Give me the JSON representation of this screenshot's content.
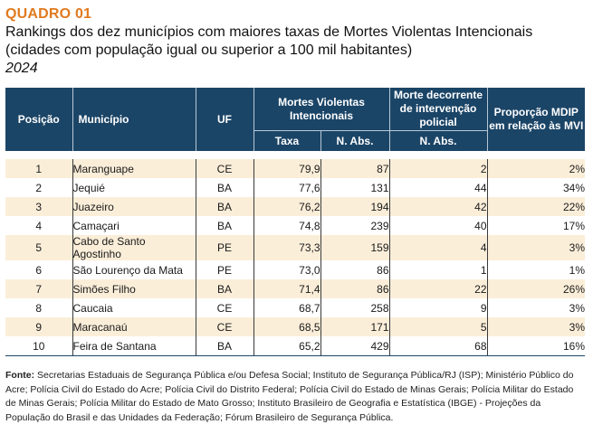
{
  "header": {
    "label": "QUADRO 01",
    "title": "Rankings dos dez municípios com maiores taxas de Mortes Violentas Intencionais (cidades com população igual ou superior a 100 mil habitantes)",
    "year": "2024"
  },
  "table": {
    "columns": {
      "posicao": "Posição",
      "municipio": "Município",
      "uf": "UF",
      "mvi_group": "Mortes Violentas Intencionais",
      "taxa": "Taxa",
      "n_abs": "N. Abs.",
      "mdip_group": "Morte decorrente de intervenção policial",
      "mdip_n_abs": "N. Abs.",
      "proporcao": "Proporção MDIP em relação às MVI"
    },
    "rows": [
      {
        "posicao": "1",
        "municipio": "Maranguape",
        "uf": "CE",
        "taxa": "79,9",
        "n_abs": "87",
        "mdip": "2",
        "proporcao": "2%"
      },
      {
        "posicao": "2",
        "municipio": "Jequié",
        "uf": "BA",
        "taxa": "77,6",
        "n_abs": "131",
        "mdip": "44",
        "proporcao": "34%"
      },
      {
        "posicao": "3",
        "municipio": "Juazeiro",
        "uf": "BA",
        "taxa": "76,2",
        "n_abs": "194",
        "mdip": "42",
        "proporcao": "22%"
      },
      {
        "posicao": "4",
        "municipio": "Camaçari",
        "uf": "BA",
        "taxa": "74,8",
        "n_abs": "239",
        "mdip": "40",
        "proporcao": "17%"
      },
      {
        "posicao": "5",
        "municipio": "Cabo de Santo Agostinho",
        "uf": "PE",
        "taxa": "73,3",
        "n_abs": "159",
        "mdip": "4",
        "proporcao": "3%"
      },
      {
        "posicao": "6",
        "municipio": "São Lourenço da Mata",
        "uf": "PE",
        "taxa": "73,0",
        "n_abs": "86",
        "mdip": "1",
        "proporcao": "1%"
      },
      {
        "posicao": "7",
        "municipio": "Simões Filho",
        "uf": "BA",
        "taxa": "71,4",
        "n_abs": "86",
        "mdip": "22",
        "proporcao": "26%"
      },
      {
        "posicao": "8",
        "municipio": "Caucaia",
        "uf": "CE",
        "taxa": "68,7",
        "n_abs": "258",
        "mdip": "9",
        "proporcao": "3%"
      },
      {
        "posicao": "9",
        "municipio": "Maracanaú",
        "uf": "CE",
        "taxa": "68,5",
        "n_abs": "171",
        "mdip": "5",
        "proporcao": "3%"
      },
      {
        "posicao": "10",
        "municipio": "Feira de Santana",
        "uf": "BA",
        "taxa": "65,2",
        "n_abs": "429",
        "mdip": "68",
        "proporcao": "16%"
      }
    ]
  },
  "source": {
    "label": "Fonte:",
    "text": "Secretarias Estaduais de Segurança Pública e/ou Defesa Social; Instituto de Segurança Pública/RJ (ISP); Ministério Público do Acre; Polícia Civil do Estado do Acre; Polícia Civil do Distrito Federal; Polícia Civil do Estado de Minas Gerais; Polícia Militar do Estado de Minas Gerais; Polícia Militar do Estado de Mato Grosso; Instituto Brasileiro de Geografia e Estatística (IBGE) - Projeções da População do Brasil e das Unidades da Federação; Fórum Brasileiro de Segurança Pública."
  },
  "colors": {
    "label": "#e07a1f",
    "header_bg": "#1b4567",
    "row_highlight": "#fbeed9"
  }
}
